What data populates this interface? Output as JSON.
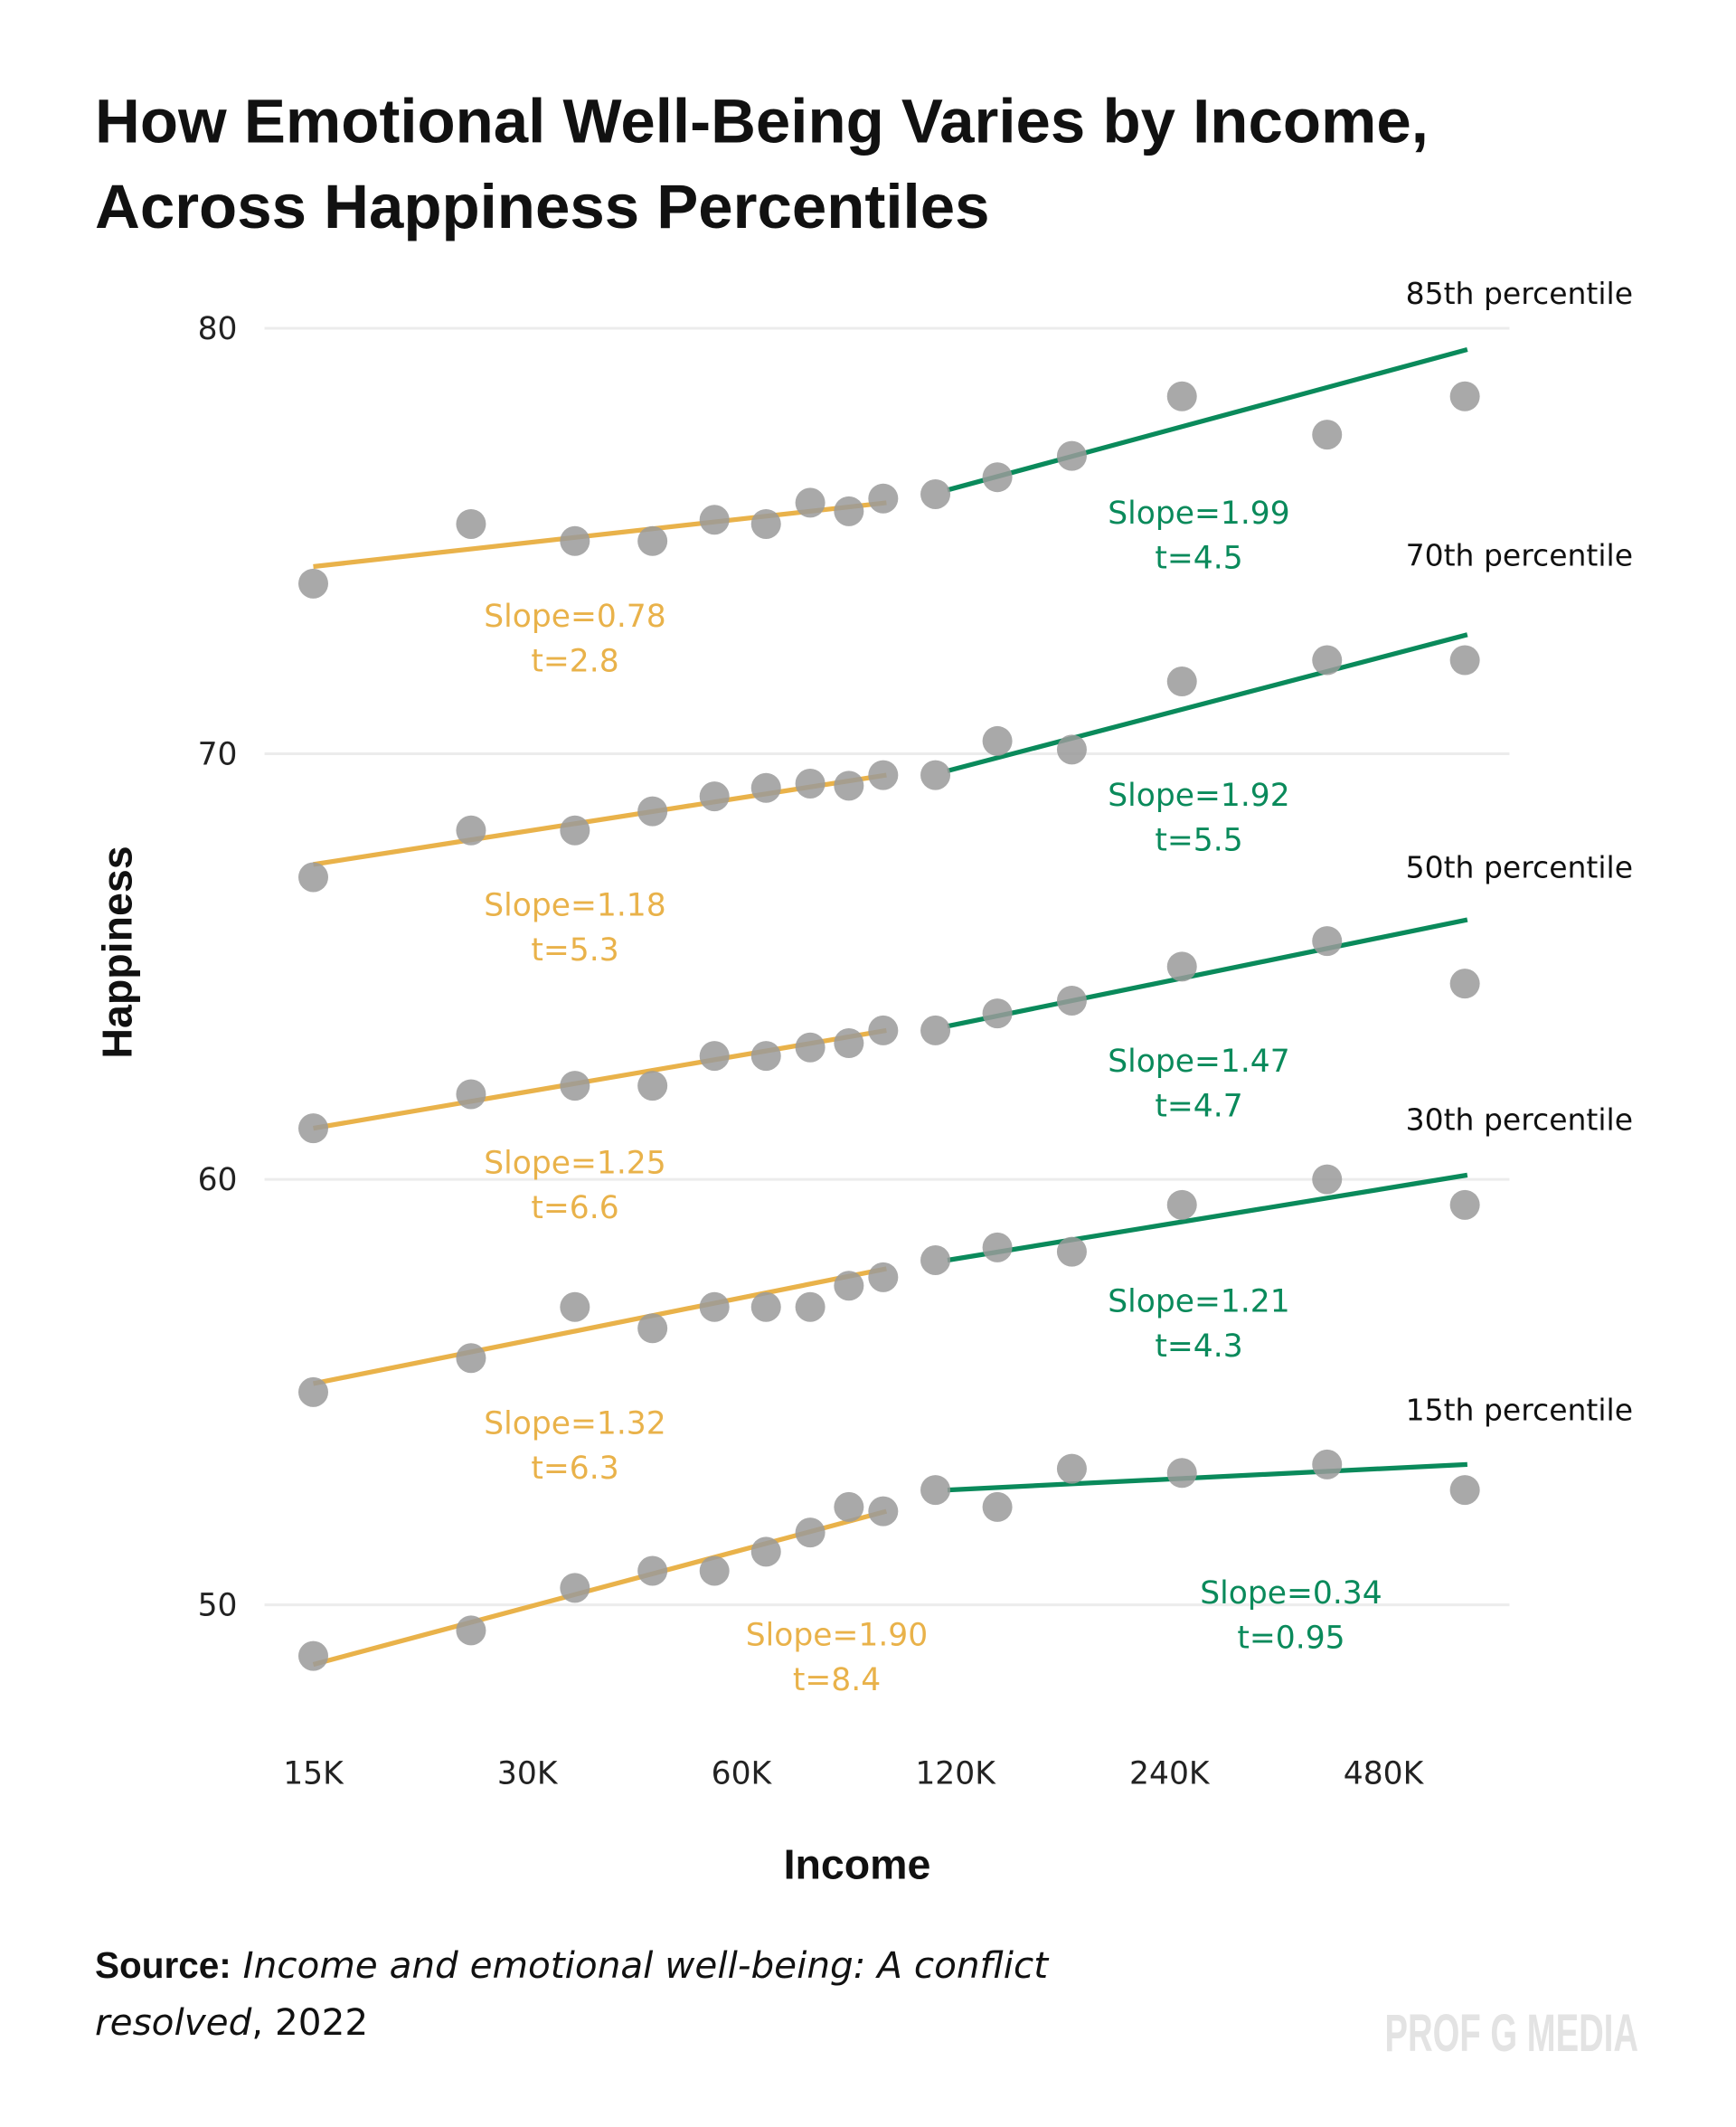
{
  "title_lines": [
    "How Emotional Well-Being Varies by Income,",
    "Across Happiness Percentiles"
  ],
  "source": {
    "label": "Source:",
    "title_part1": "Income and emotional well-being: A conflict",
    "title_part2": "resolved",
    "year": ", 2022"
  },
  "watermark": "PROF G MEDIA",
  "colors": {
    "low_income_fit": "#E9B24A",
    "high_income_fit": "#0A8A5B",
    "points": "#9a9a9a",
    "grid": "#ececec"
  },
  "chart_data": {
    "type": "scatter",
    "title": "How Emotional Well-Being Varies by Income, Across Happiness Percentiles",
    "xlabel": "Income",
    "ylabel": "Happiness",
    "x_scale": "log2",
    "xlim": [
      15,
      630
    ],
    "ylim": [
      47,
      81
    ],
    "grid": "horizontal",
    "x_ticks": [
      {
        "value": 15,
        "label": "15K"
      },
      {
        "value": 30,
        "label": "30K"
      },
      {
        "value": 60,
        "label": "60K"
      },
      {
        "value": 120,
        "label": "120K"
      },
      {
        "value": 240,
        "label": "240K"
      },
      {
        "value": 480,
        "label": "480K"
      }
    ],
    "y_ticks": [
      {
        "value": 50,
        "label": "50"
      },
      {
        "value": 60,
        "label": "60"
      },
      {
        "value": 70,
        "label": "70"
      },
      {
        "value": 80,
        "label": "80"
      }
    ],
    "x": [
      15,
      25,
      35,
      45,
      55,
      65,
      75,
      85,
      95,
      112.5,
      137.5,
      175,
      250,
      400,
      625
    ],
    "series": [
      {
        "name": "85th percentile",
        "values": [
          74.0,
          75.4,
          75.0,
          75.0,
          75.5,
          75.4,
          75.9,
          75.7,
          76.0,
          76.1,
          76.5,
          77.0,
          78.4,
          77.5,
          78.4
        ],
        "fit_low": {
          "x": [
            15,
            96
          ],
          "y": [
            74.4,
            75.9
          ],
          "slope_label": "Slope=0.78",
          "t_label": "t=2.8"
        },
        "fit_high": {
          "x": [
            117,
            630
          ],
          "y": [
            76.2,
            79.5
          ],
          "slope_label": "Slope=1.99",
          "t_label": "t=4.5"
        }
      },
      {
        "name": "70th percentile",
        "values": [
          67.1,
          68.2,
          68.2,
          68.65,
          69.0,
          69.2,
          69.3,
          69.25,
          69.5,
          69.5,
          70.3,
          70.1,
          71.7,
          72.2,
          72.2
        ],
        "fit_low": {
          "x": [
            15,
            96
          ],
          "y": [
            67.4,
            69.5
          ],
          "slope_label": "Slope=1.18",
          "t_label": "t=5.3"
        },
        "fit_high": {
          "x": [
            117,
            630
          ],
          "y": [
            69.6,
            72.8
          ],
          "slope_label": "Slope=1.92",
          "t_label": "t=5.5"
        }
      },
      {
        "name": "50th percentile",
        "values": [
          61.2,
          62.0,
          62.2,
          62.2,
          62.9,
          62.9,
          63.1,
          63.2,
          63.5,
          63.5,
          63.9,
          64.2,
          65.0,
          65.6,
          64.6
        ],
        "fit_low": {
          "x": [
            15,
            96
          ],
          "y": [
            61.2,
            63.5
          ],
          "slope_label": "Slope=1.25",
          "t_label": "t=6.6"
        },
        "fit_high": {
          "x": [
            117,
            630
          ],
          "y": [
            63.6,
            66.1
          ],
          "slope_label": "Slope=1.47",
          "t_label": "t=4.7"
        }
      },
      {
        "name": "30th percentile",
        "values": [
          55.0,
          55.8,
          57.0,
          56.5,
          57.0,
          57.0,
          57.0,
          57.5,
          57.7,
          58.1,
          58.4,
          58.3,
          59.4,
          60.0,
          59.4
        ],
        "fit_low": {
          "x": [
            15,
            96
          ],
          "y": [
            55.2,
            57.9
          ],
          "slope_label": "Slope=1.32",
          "t_label": "t=6.3"
        },
        "fit_high": {
          "x": [
            117,
            630
          ],
          "y": [
            58.1,
            60.1
          ],
          "slope_label": "Slope=1.21",
          "t_label": "t=4.3"
        }
      },
      {
        "name": "15th percentile",
        "values": [
          48.8,
          49.4,
          50.4,
          50.8,
          50.8,
          51.25,
          51.7,
          52.3,
          52.2,
          52.7,
          52.3,
          53.2,
          53.1,
          53.3,
          52.7
        ],
        "fit_low": {
          "x": [
            15,
            96
          ],
          "y": [
            48.6,
            52.2
          ],
          "slope_label": "Slope=1.90",
          "t_label": "t=8.4"
        },
        "fit_high": {
          "x": [
            117,
            630
          ],
          "y": [
            52.7,
            53.3
          ],
          "slope_label": "Slope=0.34",
          "t_label": "t=0.95"
        }
      }
    ]
  }
}
